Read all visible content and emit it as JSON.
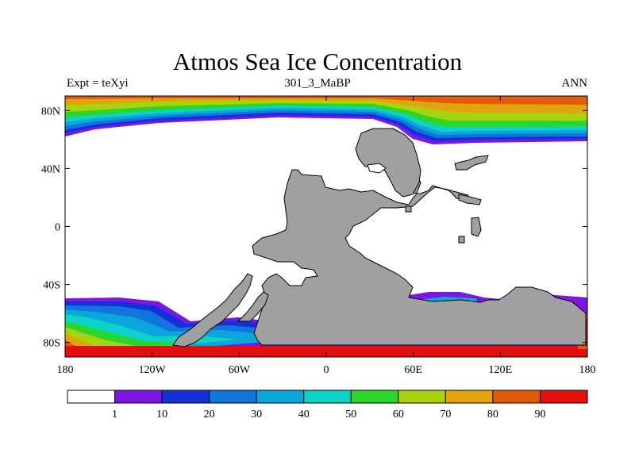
{
  "title": "Atmos Sea Ice Concentration",
  "left_string": "Expt = teXyi",
  "center_string": "301_3_MaBP",
  "right_string": "ANN",
  "axes": {
    "x_ticks": [
      "180",
      "120W",
      "60W",
      "0",
      "60E",
      "120E",
      "180"
    ],
    "y_ticks": [
      "80N",
      "40N",
      "0",
      "40S",
      "80S"
    ]
  },
  "colorbar": {
    "colors": [
      "#ffffff",
      "#7b16e5",
      "#1431d8",
      "#1274dd",
      "#0aa6dc",
      "#0dd2c8",
      "#2bd62b",
      "#a8d40f",
      "#e2a40c",
      "#e25a0c",
      "#e31010"
    ],
    "labels": [
      "1",
      "10",
      "20",
      "30",
      "40",
      "50",
      "60",
      "70",
      "80",
      "90"
    ]
  },
  "chart_data": {
    "type": "heatmap",
    "title": "Atmos Sea Ice Concentration",
    "variable": "sea ice concentration",
    "levels": [
      1,
      10,
      20,
      30,
      40,
      50,
      60,
      70,
      80,
      90
    ],
    "xlim": [
      -180,
      180
    ],
    "ylim": [
      -90,
      90
    ],
    "land_color": "#a0a0a0"
  }
}
